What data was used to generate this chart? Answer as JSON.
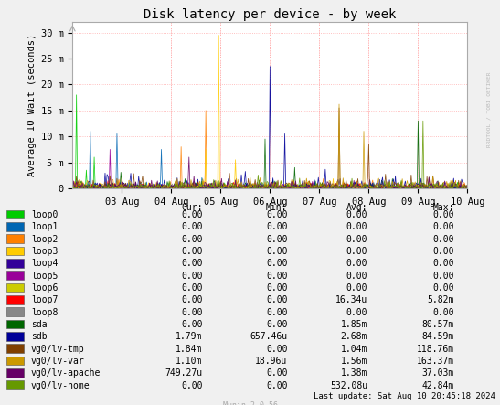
{
  "title": "Disk latency per device - by week",
  "ylabel": "Average IO Wait (seconds)",
  "background_color": "#f0f0f0",
  "plot_bg_color": "#ffffff",
  "grid_color": "#e8e8e8",
  "border_color": "#aaaaaa",
  "x_labels": [
    "03 Aug",
    "04 Aug",
    "05 Aug",
    "06 Aug",
    "07 Aug",
    "08 Aug",
    "09 Aug",
    "10 Aug"
  ],
  "y_tick_labels": [
    "0",
    "5 m",
    "10 m",
    "15 m",
    "20 m",
    "25 m",
    "30 m"
  ],
  "ylim": [
    0,
    32
  ],
  "watermark": "RRDTOOL / TOBI OETIKER",
  "munin_version": "Munin 2.0.56",
  "last_update": "Last update: Sat Aug 10 20:45:18 2024",
  "legend": [
    {
      "label": "loop0",
      "color": "#00cc00"
    },
    {
      "label": "loop1",
      "color": "#0066b3"
    },
    {
      "label": "loop2",
      "color": "#ff8000"
    },
    {
      "label": "loop3",
      "color": "#ffcc00"
    },
    {
      "label": "loop4",
      "color": "#330099"
    },
    {
      "label": "loop5",
      "color": "#990099"
    },
    {
      "label": "loop6",
      "color": "#cccc00"
    },
    {
      "label": "loop7",
      "color": "#ff0000"
    },
    {
      "label": "loop8",
      "color": "#888888"
    },
    {
      "label": "sda",
      "color": "#006600"
    },
    {
      "label": "sdb",
      "color": "#000099"
    },
    {
      "label": "vg0/lv-tmp",
      "color": "#804000"
    },
    {
      "label": "vg0/lv-var",
      "color": "#cc9900"
    },
    {
      "label": "vg0/lv-apache",
      "color": "#660066"
    },
    {
      "label": "vg0/lv-home",
      "color": "#669900"
    }
  ],
  "table_headers": [
    "Cur:",
    "Min:",
    "Avg:",
    "Max:"
  ],
  "table_data": [
    [
      "0.00",
      "0.00",
      "0.00",
      "0.00"
    ],
    [
      "0.00",
      "0.00",
      "0.00",
      "0.00"
    ],
    [
      "0.00",
      "0.00",
      "0.00",
      "0.00"
    ],
    [
      "0.00",
      "0.00",
      "0.00",
      "0.00"
    ],
    [
      "0.00",
      "0.00",
      "0.00",
      "0.00"
    ],
    [
      "0.00",
      "0.00",
      "0.00",
      "0.00"
    ],
    [
      "0.00",
      "0.00",
      "0.00",
      "0.00"
    ],
    [
      "0.00",
      "0.00",
      "16.34u",
      "5.82m"
    ],
    [
      "0.00",
      "0.00",
      "0.00",
      "0.00"
    ],
    [
      "0.00",
      "0.00",
      "1.85m",
      "80.57m"
    ],
    [
      "1.79m",
      "657.46u",
      "2.68m",
      "84.59m"
    ],
    [
      "1.84m",
      "0.00",
      "1.04m",
      "118.76m"
    ],
    [
      "1.10m",
      "18.96u",
      "1.56m",
      "163.37m"
    ],
    [
      "749.27u",
      "0.00",
      "1.38m",
      "37.03m"
    ],
    [
      "0.00",
      "0.00",
      "532.08u",
      "42.84m"
    ]
  ]
}
